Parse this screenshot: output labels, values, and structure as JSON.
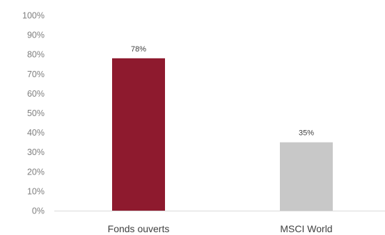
{
  "chart_data": {
    "type": "bar",
    "categories": [
      "Fonds ouverts",
      "MSCI World"
    ],
    "values": [
      78,
      35
    ],
    "data_labels": [
      "78%",
      "35%"
    ],
    "ylim": [
      0,
      100
    ],
    "y_ticks": [
      0,
      10,
      20,
      30,
      40,
      50,
      60,
      70,
      80,
      90,
      100
    ],
    "y_tick_labels": [
      "0%",
      "10%",
      "20%",
      "30%",
      "40%",
      "50%",
      "60%",
      "70%",
      "80%",
      "90%",
      "100%"
    ],
    "colors": [
      "#8e1a2e",
      "#c8c8c8"
    ],
    "grid": false,
    "legend": "none"
  }
}
